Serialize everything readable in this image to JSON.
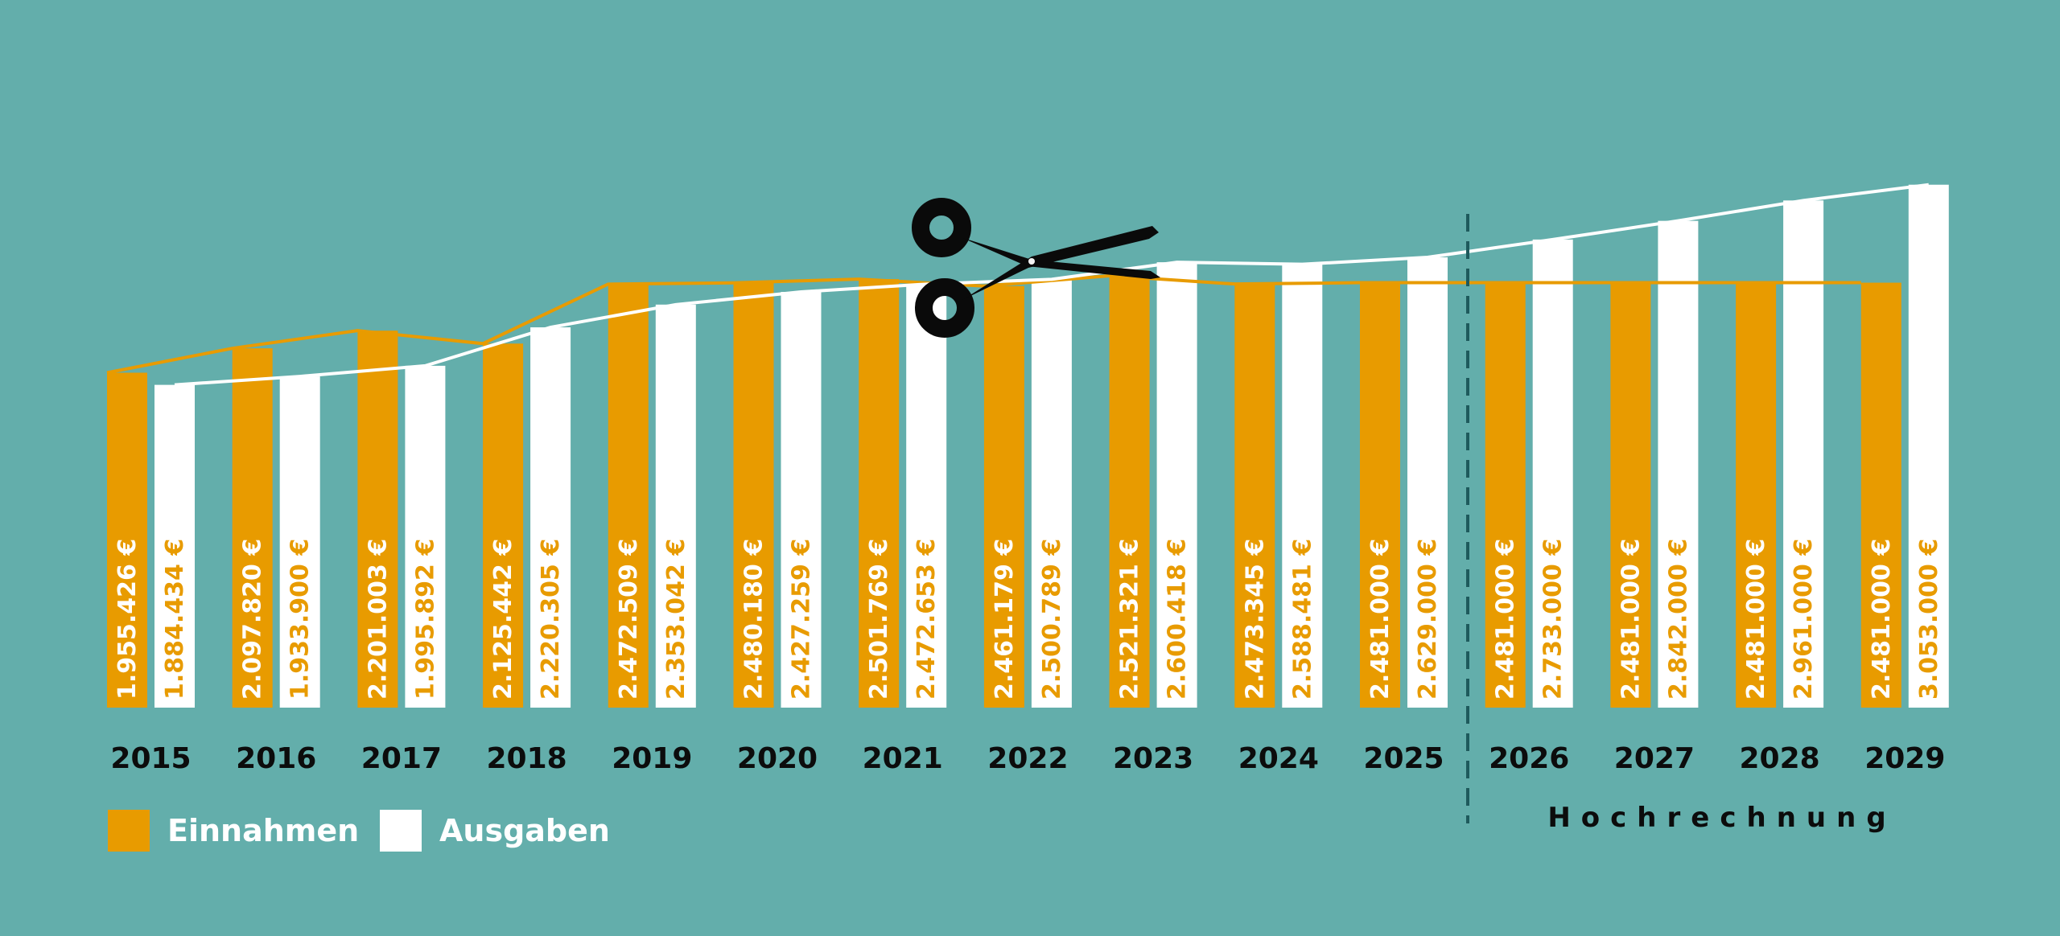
{
  "chart_data": {
    "type": "bar",
    "categories": [
      "2015",
      "2016",
      "2017",
      "2018",
      "2019",
      "2020",
      "2021",
      "2022",
      "2023",
      "2024",
      "2025",
      "2026",
      "2027",
      "2028",
      "2029"
    ],
    "series": [
      {
        "name": "Einnahmen",
        "color": "#e89b00",
        "values": [
          1955426,
          2097820,
          2201003,
          2125442,
          2472509,
          2480180,
          2501769,
          2461179,
          2521321,
          2473345,
          2481000,
          2481000,
          2481000,
          2481000,
          2481000
        ],
        "labels": [
          "1.955.426 €",
          "2.097.820 €",
          "2.201.003 €",
          "2.125.442 €",
          "2.472.509 €",
          "2.480.180 €",
          "2.501.769 €",
          "2.461.179 €",
          "2.521.321 €",
          "2.473.345 €",
          "2.481.000 €",
          "2.481.000 €",
          "2.481.000 €",
          "2.481.000 €",
          "2.481.000 €"
        ]
      },
      {
        "name": "Ausgaben",
        "color": "#ffffff",
        "values": [
          1884434,
          1933900,
          1995892,
          2220305,
          2353042,
          2427259,
          2472653,
          2500789,
          2600418,
          2588481,
          2629000,
          2733000,
          2842000,
          2961000,
          3053000
        ],
        "labels": [
          "1.884.434 €",
          "1.933.900 €",
          "1.995.892 €",
          "2.220.305 €",
          "2.353.042 €",
          "2.427.259 €",
          "2.472.653 €",
          "2.500.789 €",
          "2.600.418 €",
          "2.588.481 €",
          "2.629.000 €",
          "2.733.000 €",
          "2.842.000 €",
          "2.961.000 €",
          "3.053.000 €"
        ]
      }
    ],
    "trend_lines": true,
    "forecast_label": "Hochrechnung",
    "forecast_from": "2026",
    "legend": [
      {
        "label": "Einnahmen",
        "color": "#e89b00"
      },
      {
        "label": "Ausgaben",
        "color": "#ffffff"
      }
    ],
    "legend_position": "bottom-left",
    "decoration_icon": "scissors-icon",
    "background": "#63aeab"
  }
}
